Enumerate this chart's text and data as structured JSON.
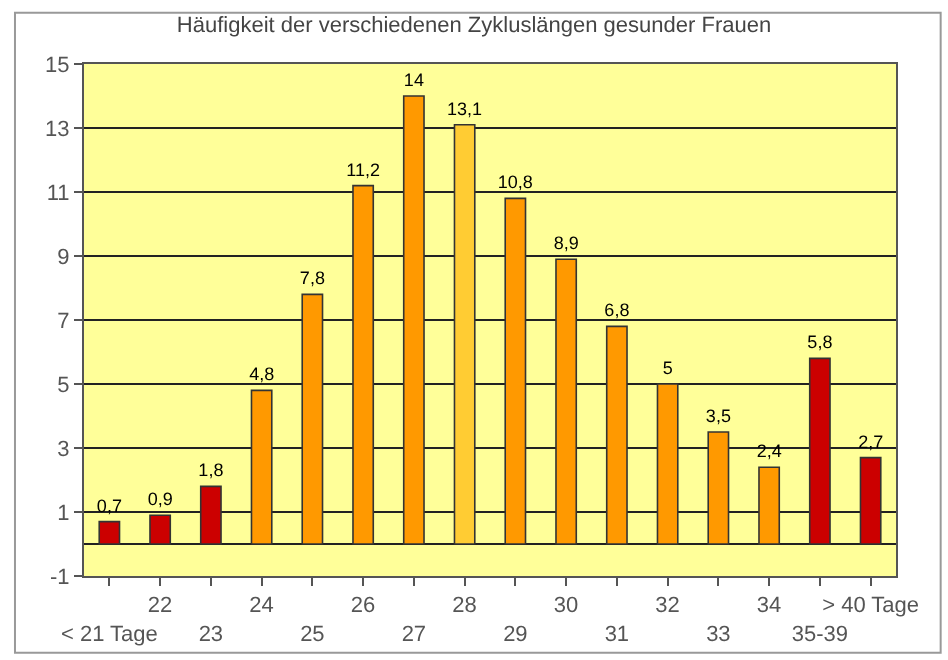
{
  "chart_data": {
    "type": "bar",
    "title": "Häufigkeit der verschiedenen Zykluslängen gesunder Frauen",
    "categories": [
      "< 21 Tage",
      "22",
      "23",
      "24",
      "25",
      "26",
      "27",
      "28",
      "29",
      "30",
      "31",
      "32",
      "33",
      "34",
      "35-39",
      "> 40 Tage"
    ],
    "values": [
      0.7,
      0.9,
      1.8,
      4.8,
      7.8,
      11.2,
      14,
      13.1,
      10.8,
      8.9,
      6.8,
      5,
      3.5,
      2.4,
      5.8,
      2.7
    ],
    "value_labels": [
      "0,7",
      "0,9",
      "1,8",
      "4,8",
      "7,8",
      "11,2",
      "14",
      "13,1",
      "10,8",
      "8,9",
      "6,8",
      "5",
      "3,5",
      "2,4",
      "5,8",
      "2,7"
    ],
    "colors": [
      "#cc0000",
      "#cc0000",
      "#cc0000",
      "#ff9900",
      "#ff9900",
      "#ff9900",
      "#ff9900",
      "#ffcc33",
      "#ff9900",
      "#ff9900",
      "#ff9900",
      "#ff9900",
      "#ff9900",
      "#ff9900",
      "#cc0000",
      "#cc0000"
    ],
    "ylim": [
      -1,
      15
    ],
    "yticks": [
      -1,
      1,
      3,
      5,
      7,
      9,
      11,
      13,
      15
    ],
    "grid": "y"
  }
}
